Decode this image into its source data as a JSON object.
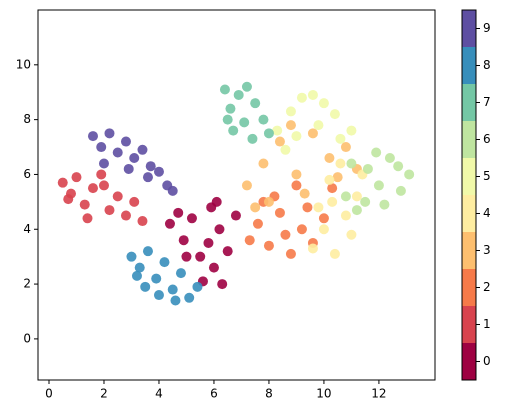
{
  "chart_data": {
    "type": "scatter",
    "xlim": [
      -0.4,
      14.04
    ],
    "ylim": [
      -1.5,
      12
    ],
    "xticks": [
      0,
      2,
      4,
      6,
      8,
      10,
      12
    ],
    "yticks": [
      0,
      2,
      4,
      6,
      8,
      10
    ],
    "colorbar": true,
    "series": [
      {
        "name": "0",
        "color": "#9e0142",
        "x": [
          4.4,
          4.9,
          5.2,
          5.5,
          5.8,
          6.0,
          6.2,
          6.5,
          5.6,
          6.3,
          6.8,
          5.0,
          4.7,
          6.1,
          5.9
        ],
        "values": [
          4.2,
          3.6,
          4.4,
          3.0,
          3.5,
          2.6,
          4.0,
          3.2,
          2.1,
          2.0,
          4.5,
          3.0,
          4.6,
          5.0,
          4.8
        ]
      },
      {
        "name": "1",
        "color": "#d8434e",
        "x": [
          0.5,
          0.8,
          1.0,
          1.3,
          1.6,
          1.9,
          2.2,
          2.5,
          2.8,
          3.1,
          1.4,
          2.0,
          3.4,
          0.7
        ],
        "values": [
          5.7,
          5.3,
          5.9,
          4.9,
          5.5,
          6.0,
          4.7,
          5.2,
          4.5,
          5.0,
          4.4,
          5.6,
          4.3,
          5.1
        ]
      },
      {
        "name": "2",
        "color": "#f67a49",
        "x": [
          7.3,
          7.6,
          8.0,
          8.4,
          8.8,
          9.2,
          9.6,
          10.0,
          8.2,
          9.0,
          7.8,
          9.4,
          8.6,
          10.3
        ],
        "values": [
          3.6,
          4.2,
          3.4,
          4.6,
          3.1,
          4.0,
          3.5,
          4.4,
          5.2,
          5.6,
          5.0,
          4.8,
          3.8,
          5.5
        ]
      },
      {
        "name": "3",
        "color": "#fdbf6f",
        "x": [
          7.2,
          7.8,
          8.4,
          9.0,
          9.6,
          10.2,
          10.8,
          8.0,
          9.3,
          10.5,
          7.5,
          8.8,
          11.2
        ],
        "values": [
          5.6,
          6.4,
          7.2,
          6.0,
          7.5,
          6.6,
          7.0,
          5.0,
          5.3,
          5.9,
          4.8,
          7.8,
          6.2
        ]
      },
      {
        "name": "4",
        "color": "#feeda1",
        "x": [
          9.6,
          10.0,
          10.4,
          10.8,
          11.2,
          10.2,
          10.6,
          11.0,
          9.8,
          11.4,
          10.3
        ],
        "values": [
          3.3,
          4.0,
          3.1,
          4.5,
          5.2,
          5.8,
          6.4,
          3.8,
          4.8,
          6.0,
          5.0
        ]
      },
      {
        "name": "5",
        "color": "#f1f9a9",
        "x": [
          8.3,
          8.8,
          9.2,
          9.6,
          10.0,
          10.4,
          9.0,
          9.8,
          10.6,
          8.6,
          11.0
        ],
        "values": [
          7.6,
          8.3,
          8.8,
          8.9,
          8.6,
          8.2,
          7.4,
          7.8,
          7.3,
          6.9,
          7.6
        ]
      },
      {
        "name": "6",
        "color": "#bfe5a0",
        "x": [
          10.8,
          11.2,
          11.6,
          12.0,
          12.4,
          12.8,
          13.1,
          11.5,
          12.2,
          12.7,
          11.0,
          11.9
        ],
        "values": [
          5.2,
          4.7,
          6.2,
          5.6,
          6.6,
          5.4,
          6.0,
          5.0,
          4.9,
          6.3,
          6.4,
          6.8
        ]
      },
      {
        "name": "7",
        "color": "#74c7a5",
        "x": [
          6.4,
          6.6,
          6.9,
          7.2,
          7.5,
          7.8,
          6.7,
          7.1,
          7.4,
          6.5,
          8.0
        ],
        "values": [
          9.1,
          8.4,
          8.9,
          9.2,
          8.6,
          8.0,
          7.6,
          7.9,
          7.3,
          8.0,
          7.5
        ]
      },
      {
        "name": "8",
        "color": "#378ebb",
        "x": [
          3.0,
          3.3,
          3.6,
          3.9,
          4.2,
          4.5,
          4.8,
          5.1,
          5.4,
          3.5,
          4.0,
          4.6,
          3.2
        ],
        "values": [
          3.0,
          2.6,
          3.2,
          2.2,
          2.8,
          1.8,
          2.4,
          1.5,
          1.9,
          1.9,
          1.6,
          1.4,
          2.3
        ]
      },
      {
        "name": "9",
        "color": "#5e4fa2",
        "x": [
          1.6,
          1.9,
          2.2,
          2.5,
          2.8,
          3.1,
          3.4,
          3.7,
          4.0,
          4.3,
          2.0,
          2.9,
          3.6,
          4.5
        ],
        "values": [
          7.4,
          7.0,
          7.5,
          6.8,
          7.2,
          6.6,
          6.9,
          6.3,
          6.1,
          5.6,
          6.4,
          6.2,
          5.9,
          5.4
        ]
      }
    ]
  }
}
